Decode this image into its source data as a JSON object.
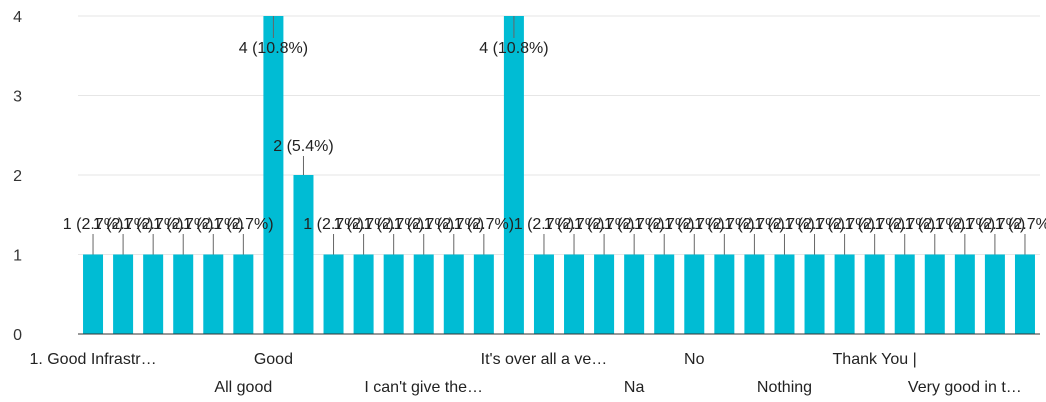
{
  "chart_data": {
    "type": "bar",
    "title": "",
    "xlabel": "",
    "ylabel": "",
    "ylim": [
      0,
      4
    ],
    "yticks": [
      0,
      1,
      2,
      3,
      4
    ],
    "grid": true,
    "bar_color": "#00bcd4",
    "categories": [
      "1. Good Infrastr…",
      "",
      "",
      "",
      "",
      "All good",
      "Good",
      "",
      "",
      "",
      "",
      "I can't give the…",
      "",
      "",
      "",
      "It's over all a ve…",
      "",
      "",
      "Na",
      "",
      "No",
      "",
      "",
      "Nothing",
      "",
      "",
      "Thank You |",
      "",
      "",
      "Very good in t…",
      "",
      ""
    ],
    "values": [
      1,
      1,
      1,
      1,
      1,
      1,
      4,
      2,
      1,
      1,
      1,
      1,
      1,
      1,
      4,
      1,
      1,
      1,
      1,
      1,
      1,
      1,
      1,
      1,
      1,
      1,
      1,
      1,
      1,
      1,
      1,
      1
    ],
    "data_labels": [
      "1 (2.7%)",
      "1 (2.7%)",
      "1 (2.7%)",
      "1 (2.7%)",
      "1 (2.7%)",
      "1 (2.7%)",
      "4 (10.8%)",
      "2 (5.4%)",
      "1 (2.7%)",
      "1 (2.7%)",
      "1 (2.7%)",
      "1 (2.7%)",
      "1 (2.7%)",
      "1 (2.7%)",
      "4 (10.8%)",
      "1 (2.7%)",
      "1 (2.7%)",
      "1 (2.7%)",
      "1 (2.7%)",
      "1 (2.7%)",
      "1 (2.7%)",
      "1 (2.7%)",
      "1 (2.7%)",
      "1 (2.7%)",
      "1 (2.7%)",
      "1 (2.7%)",
      "1 (2.7%)",
      "1 (2.7%)",
      "1 (2.7%)",
      "1 (2.7%)",
      "1 (2.7%)",
      "1 (2.7%)"
    ],
    "x_tick_labels": [
      "1. Good Infrastr…",
      "All good",
      "Good",
      "I can't give the…",
      "It's over all a ve…",
      "Na",
      "No",
      "Nothing",
      "Thank You |",
      "Very good in t…"
    ]
  }
}
